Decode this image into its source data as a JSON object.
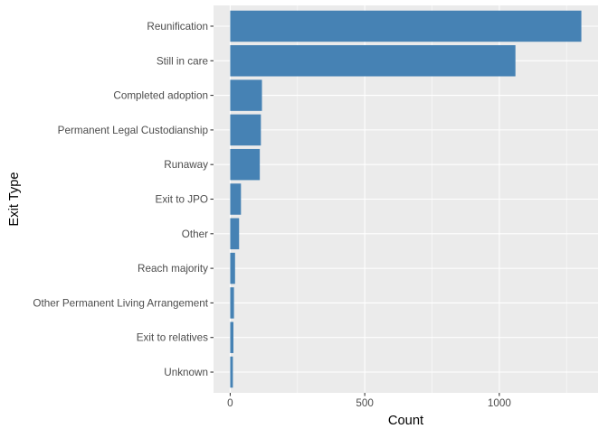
{
  "chart_data": {
    "type": "bar",
    "orientation": "horizontal",
    "title": "",
    "xlabel": "Count",
    "ylabel": "Exit Type",
    "categories": [
      "Reunification",
      "Still in care",
      "Completed adoption",
      "Permanent Legal Custodianship",
      "Runaway",
      "Exit to JPO",
      "Other",
      "Reach majority",
      "Other Permanent Living Arrangement",
      "Exit to relatives",
      "Unknown"
    ],
    "values": [
      1305,
      1060,
      118,
      114,
      110,
      40,
      33,
      18,
      14,
      12,
      10
    ],
    "xlim": [
      -62,
      1367
    ],
    "x_ticks": [
      0,
      500,
      1000
    ],
    "x_tick_labels": [
      "0",
      "500",
      "1000"
    ],
    "bar_color": "#4682B4",
    "panel_background": "#EBEBEB",
    "grid": true,
    "legend": "none"
  }
}
